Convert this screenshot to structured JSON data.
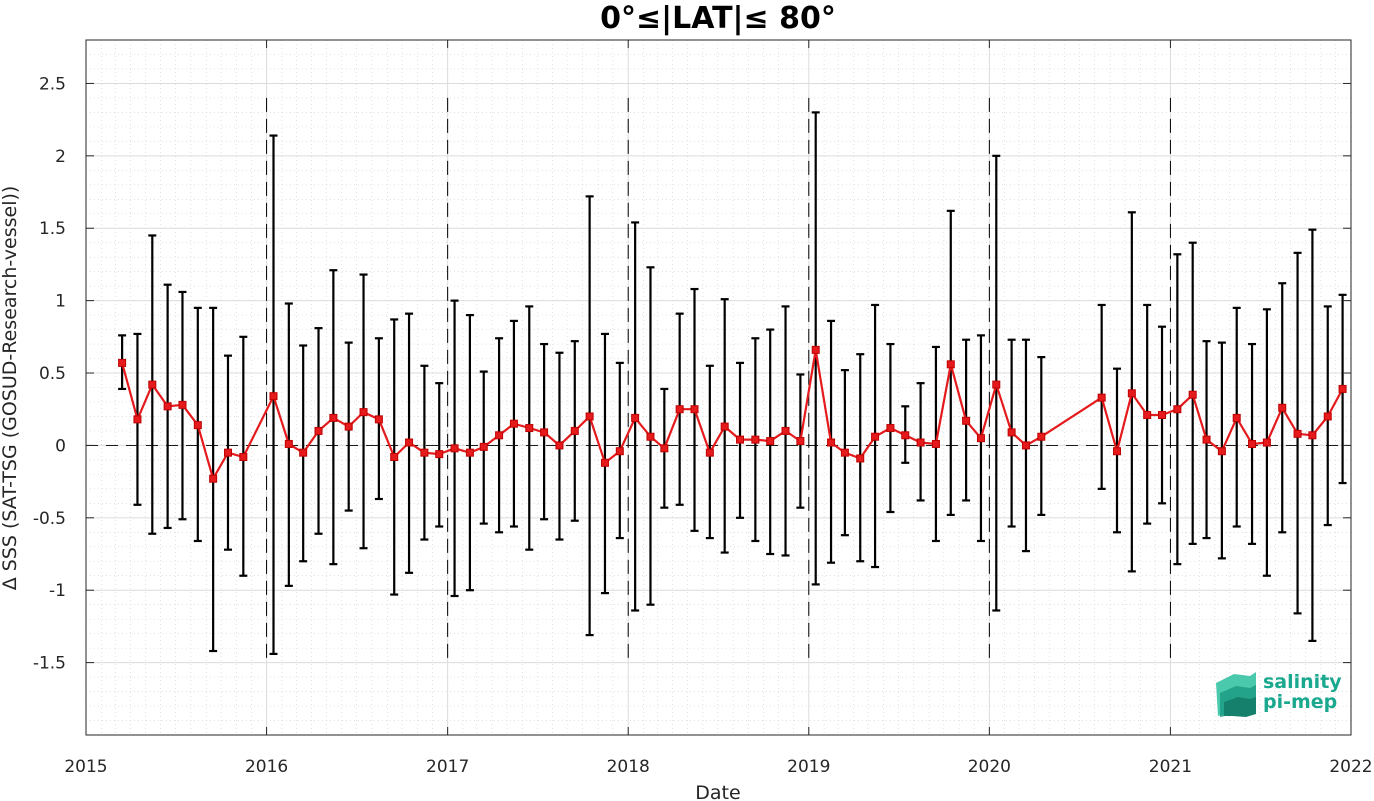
{
  "chart_data": {
    "type": "line",
    "title": "0°≤|LAT|≤ 80°",
    "xlabel": "Date",
    "ylabel": "Δ SSS (SAT-TSG (GOSUD-Research-vessel))",
    "x_axis_kind": "date",
    "xlim": [
      "2015-01-01",
      "2022-01-01"
    ],
    "ylim": [
      -2.0,
      2.8
    ],
    "x_ticks": [
      "2015-01-01",
      "2016-01-01",
      "2017-01-01",
      "2018-01-01",
      "2019-01-01",
      "2020-01-01",
      "2021-01-01",
      "2022-01-01"
    ],
    "x_tick_labels": [
      "2015",
      "2016",
      "2017",
      "2018",
      "2019",
      "2020",
      "2021",
      "2022"
    ],
    "y_ticks": [
      -1.5,
      -1,
      -0.5,
      0,
      0.5,
      1,
      1.5,
      2,
      2.5
    ],
    "y_tick_labels": [
      "-1.5",
      "-1",
      "-0.5",
      "0",
      "0.5",
      "1",
      "1.5",
      "2",
      "2.5"
    ],
    "grid": true,
    "zero_line": true,
    "year_boundaries": [
      "2016-01-01",
      "2017-01-01",
      "2018-01-01",
      "2019-01-01",
      "2020-01-01",
      "2021-01-01"
    ],
    "colors": {
      "series": "#e41a1c",
      "errorbars": "#000000",
      "grid": "#cfcfcf",
      "logo": "#1aa88e"
    },
    "series": [
      {
        "segments": [
          [
            {
              "x": "2015-03-15",
              "y": 0.57,
              "lo": 0.39,
              "hi": 0.76
            },
            {
              "x": "2015-04-15",
              "y": 0.18,
              "lo": -0.41,
              "hi": 0.77
            },
            {
              "x": "2015-05-15",
              "y": 0.42,
              "lo": -0.61,
              "hi": 1.45
            },
            {
              "x": "2015-06-15",
              "y": 0.27,
              "lo": -0.57,
              "hi": 1.11
            },
            {
              "x": "2015-07-15",
              "y": 0.28,
              "lo": -0.51,
              "hi": 1.06
            },
            {
              "x": "2015-08-15",
              "y": 0.14,
              "lo": -0.66,
              "hi": 0.95
            },
            {
              "x": "2015-09-15",
              "y": -0.23,
              "lo": -1.42,
              "hi": 0.95
            },
            {
              "x": "2015-10-15",
              "y": -0.05,
              "lo": -0.72,
              "hi": 0.62
            },
            {
              "x": "2015-11-15",
              "y": -0.08,
              "lo": -0.9,
              "hi": 0.75
            },
            {
              "x": "2016-01-15",
              "y": 0.34,
              "lo": -1.44,
              "hi": 2.14
            },
            {
              "x": "2016-02-15",
              "y": 0.01,
              "lo": -0.97,
              "hi": 0.98
            },
            {
              "x": "2016-03-15",
              "y": -0.05,
              "lo": -0.8,
              "hi": 0.69
            },
            {
              "x": "2016-04-15",
              "y": 0.1,
              "lo": -0.61,
              "hi": 0.81
            },
            {
              "x": "2016-05-15",
              "y": 0.19,
              "lo": -0.82,
              "hi": 1.21
            },
            {
              "x": "2016-06-15",
              "y": 0.13,
              "lo": -0.45,
              "hi": 0.71
            },
            {
              "x": "2016-07-15",
              "y": 0.23,
              "lo": -0.71,
              "hi": 1.18
            },
            {
              "x": "2016-08-15",
              "y": 0.18,
              "lo": -0.37,
              "hi": 0.74
            },
            {
              "x": "2016-09-15",
              "y": -0.08,
              "lo": -1.03,
              "hi": 0.87
            },
            {
              "x": "2016-10-15",
              "y": 0.02,
              "lo": -0.88,
              "hi": 0.91
            },
            {
              "x": "2016-11-15",
              "y": -0.05,
              "lo": -0.65,
              "hi": 0.55
            },
            {
              "x": "2016-12-15",
              "y": -0.06,
              "lo": -0.56,
              "hi": 0.43
            },
            {
              "x": "2017-01-15",
              "y": -0.02,
              "lo": -1.04,
              "hi": 1.0
            },
            {
              "x": "2017-02-15",
              "y": -0.05,
              "lo": -1.0,
              "hi": 0.9
            },
            {
              "x": "2017-03-15",
              "y": -0.01,
              "lo": -0.54,
              "hi": 0.51
            },
            {
              "x": "2017-04-15",
              "y": 0.07,
              "lo": -0.6,
              "hi": 0.74
            },
            {
              "x": "2017-05-15",
              "y": 0.15,
              "lo": -0.56,
              "hi": 0.86
            },
            {
              "x": "2017-06-15",
              "y": 0.12,
              "lo": -0.72,
              "hi": 0.96
            },
            {
              "x": "2017-07-15",
              "y": 0.09,
              "lo": -0.51,
              "hi": 0.7
            },
            {
              "x": "2017-08-15",
              "y": 0.0,
              "lo": -0.65,
              "hi": 0.64
            },
            {
              "x": "2017-09-15",
              "y": 0.1,
              "lo": -0.52,
              "hi": 0.72
            },
            {
              "x": "2017-10-15",
              "y": 0.2,
              "lo": -1.31,
              "hi": 1.72
            },
            {
              "x": "2017-11-15",
              "y": -0.12,
              "lo": -1.02,
              "hi": 0.77
            },
            {
              "x": "2017-12-15",
              "y": -0.04,
              "lo": -0.64,
              "hi": 0.57
            },
            {
              "x": "2018-01-15",
              "y": 0.19,
              "lo": -1.14,
              "hi": 1.54
            },
            {
              "x": "2018-02-15",
              "y": 0.06,
              "lo": -1.1,
              "hi": 1.23
            },
            {
              "x": "2018-03-15",
              "y": -0.02,
              "lo": -0.43,
              "hi": 0.39
            },
            {
              "x": "2018-04-15",
              "y": 0.25,
              "lo": -0.41,
              "hi": 0.91
            },
            {
              "x": "2018-05-15",
              "y": 0.25,
              "lo": -0.59,
              "hi": 1.08
            },
            {
              "x": "2018-06-15",
              "y": -0.05,
              "lo": -0.64,
              "hi": 0.55
            },
            {
              "x": "2018-07-15",
              "y": 0.13,
              "lo": -0.74,
              "hi": 1.01
            },
            {
              "x": "2018-08-15",
              "y": 0.04,
              "lo": -0.5,
              "hi": 0.57
            },
            {
              "x": "2018-09-15",
              "y": 0.04,
              "lo": -0.66,
              "hi": 0.74
            },
            {
              "x": "2018-10-15",
              "y": 0.03,
              "lo": -0.75,
              "hi": 0.8
            },
            {
              "x": "2018-11-15",
              "y": 0.1,
              "lo": -0.76,
              "hi": 0.96
            },
            {
              "x": "2018-12-15",
              "y": 0.03,
              "lo": -0.43,
              "hi": 0.49
            },
            {
              "x": "2019-01-15",
              "y": 0.66,
              "lo": -0.96,
              "hi": 2.3
            },
            {
              "x": "2019-02-15",
              "y": 0.02,
              "lo": -0.81,
              "hi": 0.86
            },
            {
              "x": "2019-03-15",
              "y": -0.05,
              "lo": -0.62,
              "hi": 0.52
            },
            {
              "x": "2019-04-15",
              "y": -0.09,
              "lo": -0.8,
              "hi": 0.63
            },
            {
              "x": "2019-05-15",
              "y": 0.06,
              "lo": -0.84,
              "hi": 0.97
            },
            {
              "x": "2019-06-15",
              "y": 0.12,
              "lo": -0.46,
              "hi": 0.7
            },
            {
              "x": "2019-07-15",
              "y": 0.07,
              "lo": -0.12,
              "hi": 0.27
            },
            {
              "x": "2019-08-15",
              "y": 0.02,
              "lo": -0.38,
              "hi": 0.43
            },
            {
              "x": "2019-09-15",
              "y": 0.01,
              "lo": -0.66,
              "hi": 0.68
            },
            {
              "x": "2019-10-15",
              "y": 0.56,
              "lo": -0.48,
              "hi": 1.62
            },
            {
              "x": "2019-11-15",
              "y": 0.17,
              "lo": -0.38,
              "hi": 0.73
            },
            {
              "x": "2019-12-15",
              "y": 0.05,
              "lo": -0.66,
              "hi": 0.76
            },
            {
              "x": "2020-01-15",
              "y": 0.42,
              "lo": -1.14,
              "hi": 2.0
            },
            {
              "x": "2020-02-15",
              "y": 0.09,
              "lo": -0.56,
              "hi": 0.73
            },
            {
              "x": "2020-03-15",
              "y": 0.0,
              "lo": -0.73,
              "hi": 0.73
            },
            {
              "x": "2020-04-15",
              "y": 0.06,
              "lo": -0.48,
              "hi": 0.61
            },
            {
              "x": "2020-08-15",
              "y": 0.33,
              "lo": -0.3,
              "hi": 0.97
            },
            {
              "x": "2020-09-15",
              "y": -0.04,
              "lo": -0.6,
              "hi": 0.53
            },
            {
              "x": "2020-10-15",
              "y": 0.36,
              "lo": -0.87,
              "hi": 1.61
            },
            {
              "x": "2020-11-15",
              "y": 0.21,
              "lo": -0.54,
              "hi": 0.97
            },
            {
              "x": "2020-12-15",
              "y": 0.21,
              "lo": -0.4,
              "hi": 0.82
            },
            {
              "x": "2021-01-15",
              "y": 0.25,
              "lo": -0.82,
              "hi": 1.32
            },
            {
              "x": "2021-02-15",
              "y": 0.35,
              "lo": -0.68,
              "hi": 1.4
            },
            {
              "x": "2021-03-15",
              "y": 0.04,
              "lo": -0.64,
              "hi": 0.72
            },
            {
              "x": "2021-04-15",
              "y": -0.04,
              "lo": -0.78,
              "hi": 0.71
            },
            {
              "x": "2021-05-15",
              "y": 0.19,
              "lo": -0.56,
              "hi": 0.95
            },
            {
              "x": "2021-06-15",
              "y": 0.01,
              "lo": -0.68,
              "hi": 0.7
            },
            {
              "x": "2021-07-15",
              "y": 0.02,
              "lo": -0.9,
              "hi": 0.94
            },
            {
              "x": "2021-08-15",
              "y": 0.26,
              "lo": -0.6,
              "hi": 1.12
            },
            {
              "x": "2021-09-15",
              "y": 0.08,
              "lo": -1.16,
              "hi": 1.33
            },
            {
              "x": "2021-10-15",
              "y": 0.07,
              "lo": -1.35,
              "hi": 1.49
            },
            {
              "x": "2021-11-15",
              "y": 0.2,
              "lo": -0.55,
              "hi": 0.96
            },
            {
              "x": "2021-12-15",
              "y": 0.39,
              "lo": -0.26,
              "hi": 1.04
            }
          ]
        ]
      }
    ]
  },
  "logo": {
    "line1": "salinity",
    "line2": "pi-mep"
  }
}
